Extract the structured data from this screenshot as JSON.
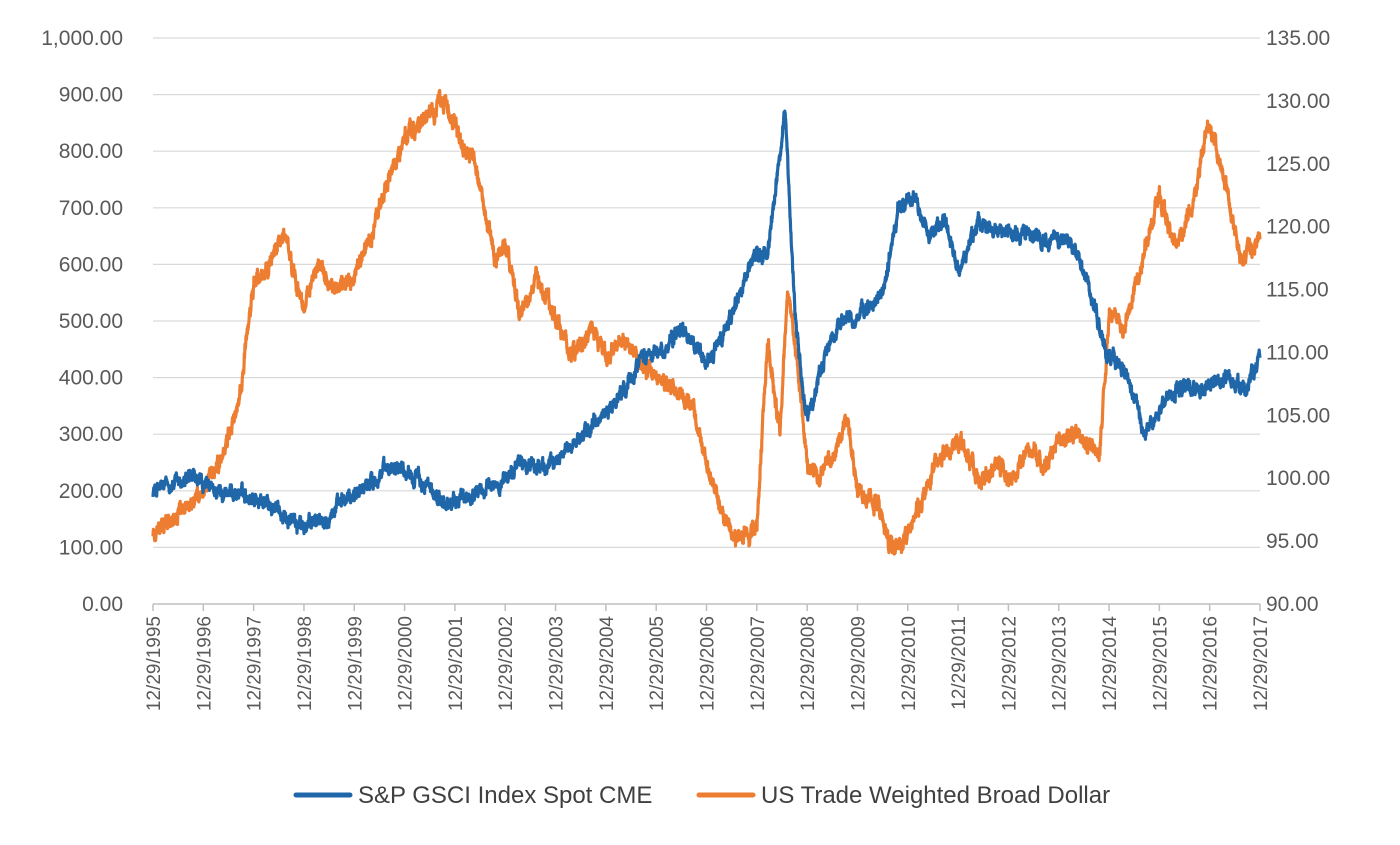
{
  "chart_data": {
    "type": "line",
    "title": "",
    "xlabel": "",
    "ylabel": "",
    "grid": true,
    "legend_position": "bottom",
    "x_tick_labels": [
      "12/29/1995",
      "12/29/1996",
      "12/29/1997",
      "12/29/1998",
      "12/29/1999",
      "12/29/2000",
      "12/29/2001",
      "12/29/2002",
      "12/29/2003",
      "12/29/2004",
      "12/29/2005",
      "12/29/2006",
      "12/29/2007",
      "12/29/2008",
      "12/29/2009",
      "12/29/2010",
      "12/29/2011",
      "12/29/2012",
      "12/29/2013",
      "12/29/2014",
      "12/29/2015",
      "12/29/2016",
      "12/29/2017"
    ],
    "xlim": [
      1995.99,
      2017.99
    ],
    "y_left": {
      "ylim": [
        0,
        1000
      ],
      "ticks": [
        0,
        100,
        200,
        300,
        400,
        500,
        600,
        700,
        800,
        900,
        1000
      ],
      "tick_labels": [
        "0.00",
        "100.00",
        "200.00",
        "300.00",
        "400.00",
        "500.00",
        "600.00",
        "700.00",
        "800.00",
        "900.00",
        "1,000.00"
      ]
    },
    "y_right": {
      "ylim": [
        90,
        135
      ],
      "ticks": [
        90,
        95,
        100,
        105,
        110,
        115,
        120,
        125,
        130,
        135
      ],
      "tick_labels": [
        "90.00",
        "95.00",
        "100.00",
        "105.00",
        "110.00",
        "115.00",
        "120.00",
        "125.00",
        "130.00",
        "135.00"
      ]
    },
    "series": [
      {
        "name": "S&P GSCI Index Spot CME",
        "axis": "left",
        "color": "#1f67a8",
        "x": [
          1995.99,
          1996.3,
          1996.8,
          1997.2,
          1997.8,
          1998.5,
          1998.99,
          1999.5,
          1999.99,
          2000.3,
          2000.8,
          2001.2,
          2001.8,
          2002.4,
          2002.9,
          2003.3,
          2003.8,
          2004.3,
          2004.8,
          2005.3,
          2005.7,
          2006.2,
          2006.5,
          2006.99,
          2007.4,
          2007.9,
          2008.2,
          2008.55,
          2008.75,
          2008.95,
          2009.1,
          2009.3,
          2009.7,
          2010.0,
          2010.5,
          2010.8,
          2011.1,
          2011.4,
          2011.7,
          2012.0,
          2012.4,
          2012.8,
          2013.3,
          2013.7,
          2014.2,
          2014.6,
          2014.9,
          2015.3,
          2015.7,
          2016.1,
          2016.5,
          2016.9,
          2017.3,
          2017.7,
          2017.99
        ],
        "y": [
          200,
          210,
          220,
          200,
          195,
          165,
          135,
          160,
          195,
          215,
          250,
          225,
          175,
          195,
          215,
          250,
          240,
          280,
          320,
          370,
          440,
          450,
          490,
          420,
          490,
          610,
          620,
          870,
          520,
          340,
          350,
          430,
          510,
          500,
          550,
          700,
          720,
          650,
          680,
          580,
          680,
          660,
          650,
          650,
          640,
          560,
          450,
          410,
          300,
          360,
          380,
          380,
          400,
          380,
          435
        ]
      },
      {
        "name": "US Trade Weighted Broad Dollar",
        "axis": "right",
        "color": "#ed7d31",
        "x": [
          1995.99,
          1996.4,
          1996.8,
          1997.0,
          1997.4,
          1997.7,
          1998.0,
          1998.3,
          1998.6,
          1998.99,
          1999.3,
          1999.6,
          1999.99,
          2000.3,
          2000.7,
          2000.99,
          2001.4,
          2001.8,
          2002.1,
          2002.4,
          2002.8,
          2002.99,
          2003.3,
          2003.6,
          2003.99,
          2004.3,
          2004.7,
          2004.99,
          2005.4,
          2005.7,
          2005.99,
          2006.3,
          2006.7,
          2006.99,
          2007.3,
          2007.6,
          2007.99,
          2008.2,
          2008.45,
          2008.6,
          2008.8,
          2009.0,
          2009.2,
          2009.5,
          2009.8,
          2009.99,
          2010.4,
          2010.7,
          2010.99,
          2011.3,
          2011.6,
          2011.99,
          2012.4,
          2012.8,
          2012.99,
          2013.4,
          2013.7,
          2013.99,
          2014.4,
          2014.8,
          2015.0,
          2015.3,
          2015.7,
          2015.99,
          2016.3,
          2016.6,
          2016.99,
          2017.3,
          2017.6,
          2017.99
        ],
        "y": [
          95.5,
          97.0,
          98.0,
          99.0,
          102.0,
          106.0,
          115.5,
          117.0,
          119.5,
          113.5,
          117.0,
          115.0,
          116.0,
          119.0,
          124.0,
          127.0,
          128.5,
          130.0,
          127.0,
          125.0,
          117.0,
          118.5,
          113.0,
          116.0,
          113.0,
          109.5,
          112.0,
          110.0,
          111.0,
          109.0,
          108.0,
          107.0,
          106.0,
          101.0,
          97.5,
          95.0,
          96.0,
          111.0,
          103.5,
          115.5,
          109.0,
          101.0,
          100.0,
          102.0,
          104.5,
          99.0,
          98.0,
          94.0,
          95.5,
          98.5,
          101.5,
          103.0,
          100.0,
          101.0,
          99.5,
          102.5,
          101.0,
          103.0,
          103.5,
          102.0,
          113.0,
          112.0,
          118.0,
          122.5,
          118.5,
          121.0,
          128.5,
          123.0,
          117.5,
          119.0
        ]
      }
    ]
  }
}
